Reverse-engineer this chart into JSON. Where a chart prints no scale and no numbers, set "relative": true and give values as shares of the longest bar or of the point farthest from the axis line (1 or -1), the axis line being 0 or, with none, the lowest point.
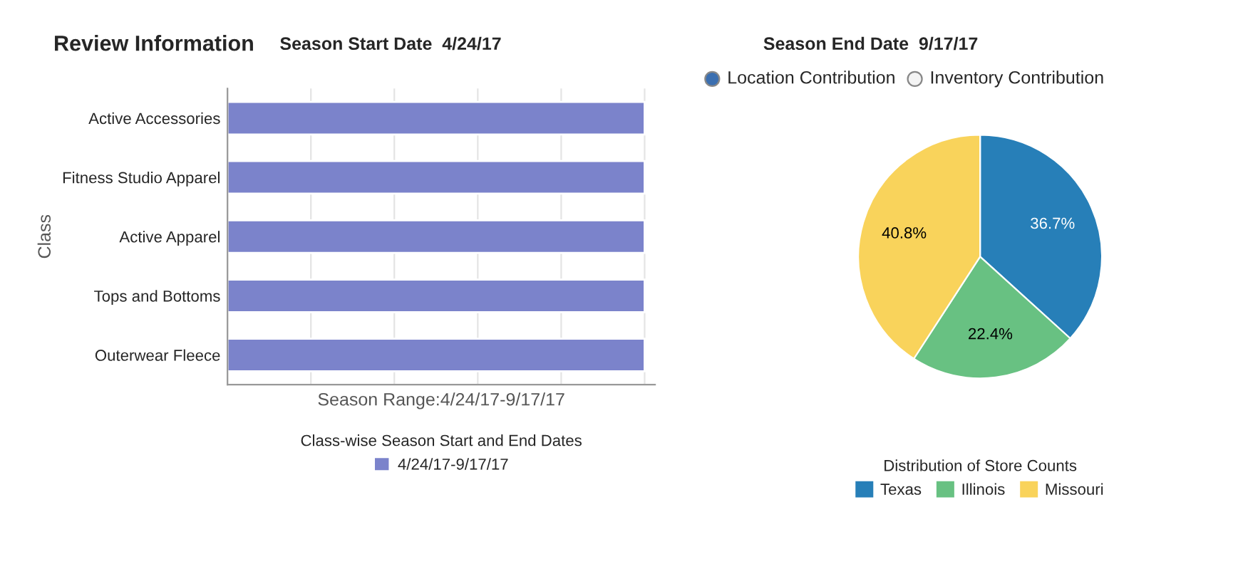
{
  "chart_data": [
    {
      "type": "bar",
      "orientation": "horizontal",
      "relative": true,
      "annotations": [
        "Review Information",
        "Season Start Date  4/24/17"
      ],
      "xlabel": "Season Range:4/24/17-9/17/17",
      "ylabel": "Class",
      "categories": [
        "Active Accessories",
        "Fitness Studio Apparel",
        "Active Apparel",
        "Tops and Bottoms",
        "Outerwear Fleece"
      ],
      "series": [
        {
          "name": "4/24/17-9/17/17",
          "color": "#7b83cb",
          "values": [
            1,
            1,
            1,
            1,
            1
          ]
        }
      ],
      "legend_title": "Class-wise Season Start and End Dates",
      "legend": "bottom",
      "grid": "x"
    },
    {
      "type": "pie",
      "annotations": [
        "Season End Date  9/17/17",
        "Location Contribution",
        "Inventory Contribution"
      ],
      "legend_title": "Distribution of Store Counts",
      "legend": "bottom",
      "data_labels": true,
      "value_labels": [
        "36.7%",
        "22.4%",
        "40.8%"
      ],
      "categories": [
        "Texas",
        "Illinois",
        "Missouri"
      ],
      "values": [
        36.7,
        22.4,
        40.8
      ],
      "colors": [
        "#277fb8",
        "#68c182",
        "#f9d35b"
      ]
    }
  ]
}
